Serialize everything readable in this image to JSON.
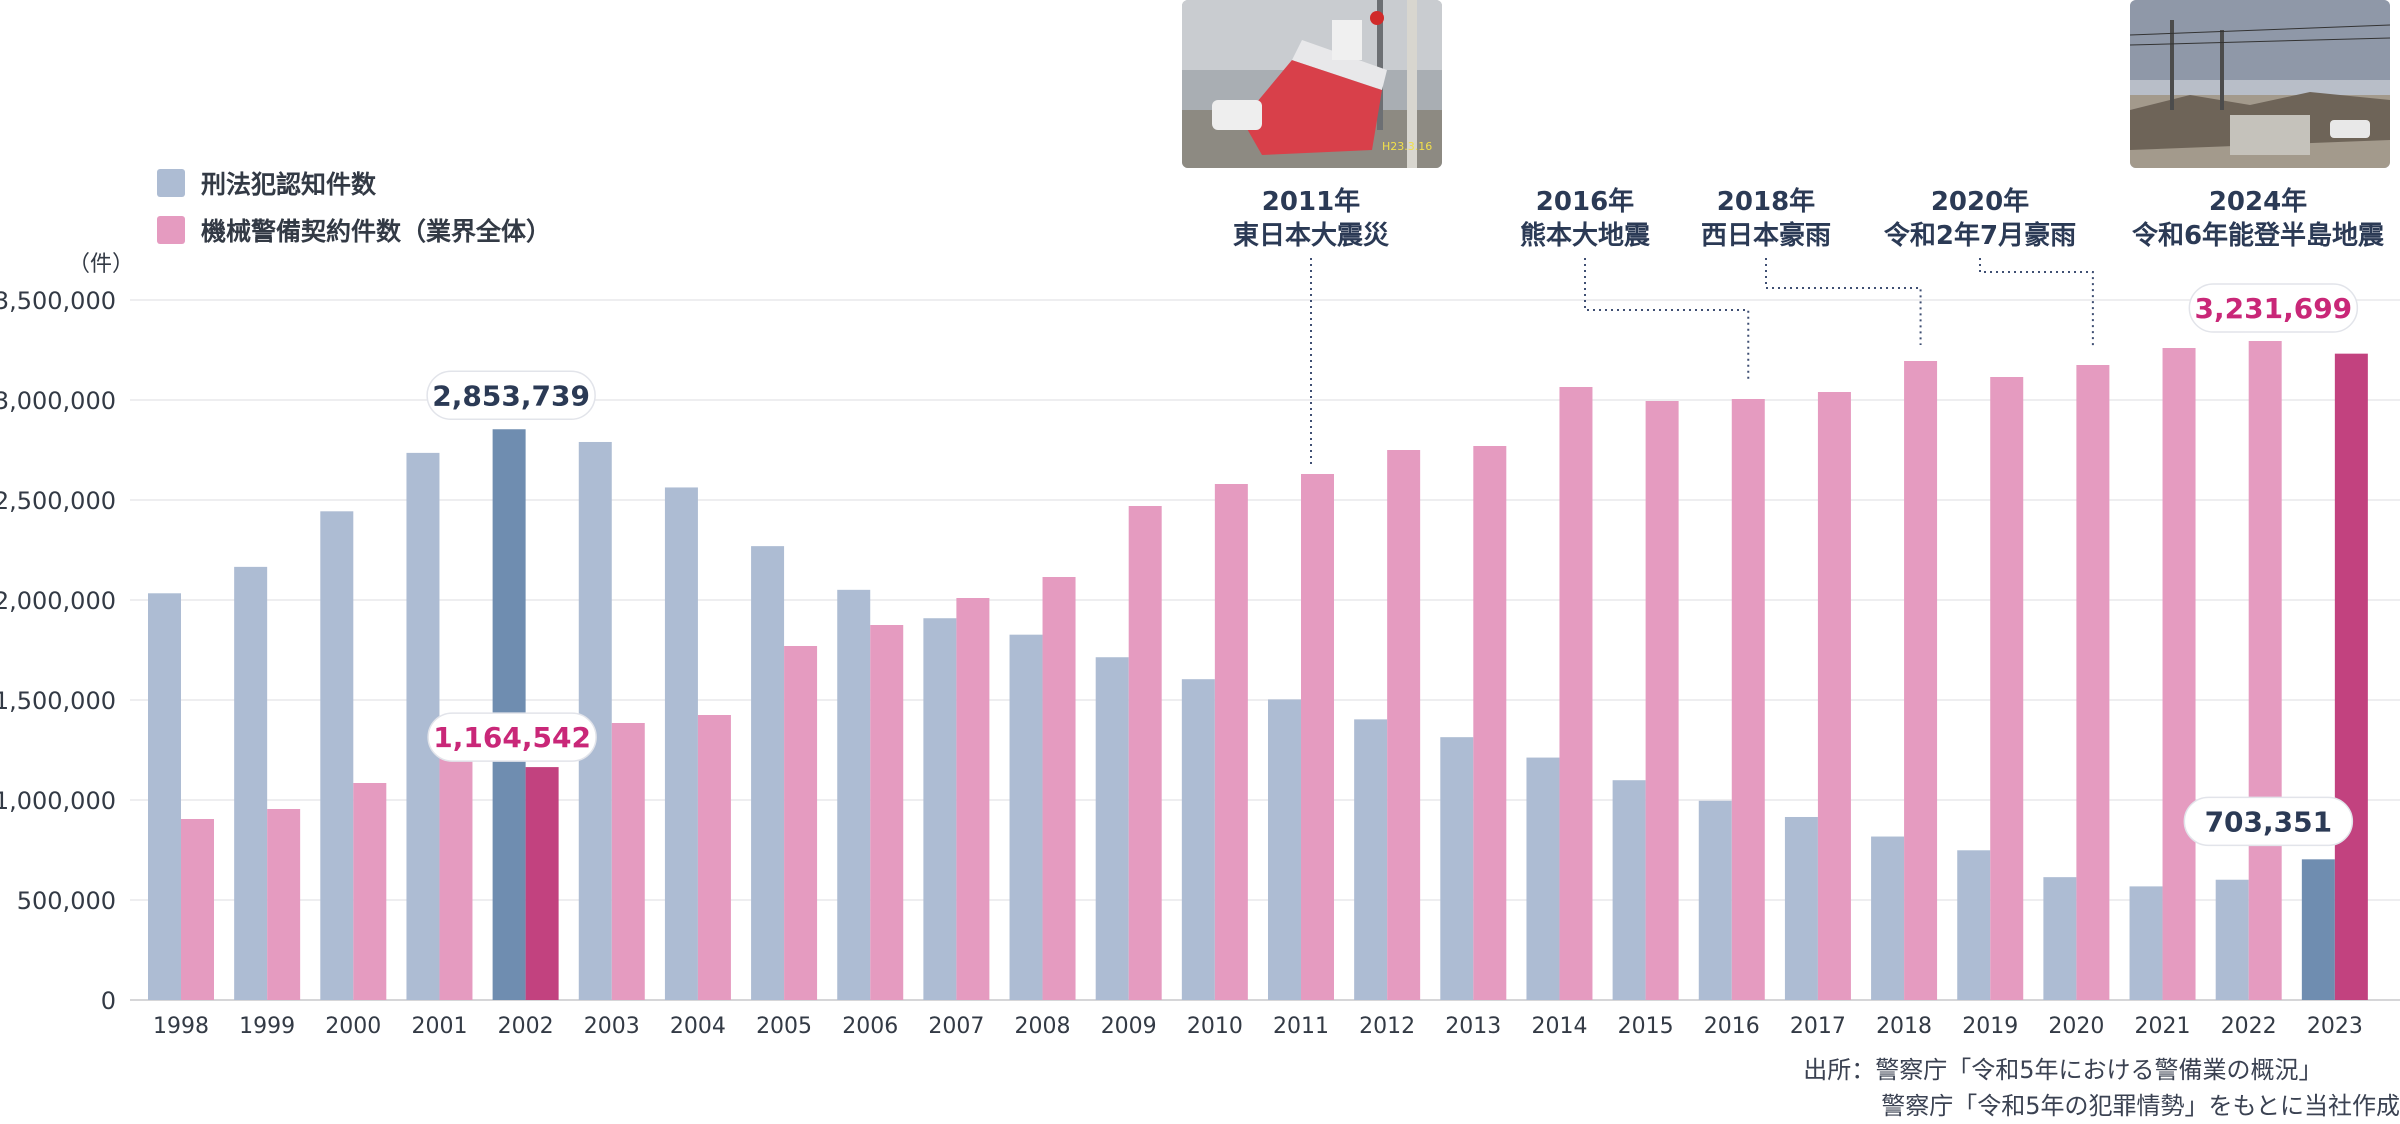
{
  "legend": {
    "series1": "刑法犯認知件数",
    "series2": "機械警備契約件数（業界全体）"
  },
  "unit": "（件）",
  "colors": {
    "crime": "#adbcd3",
    "crime_highlight": "#6f8db0",
    "security": "#e59bc0",
    "security_highlight": "#c2427f",
    "grid": "#e8e8ec",
    "text": "#333a45",
    "callout_crime": "#2b3a55",
    "callout_security": "#c92778",
    "annotation": "#2b3a55",
    "dotted": "#3f4f73"
  },
  "chart_data": {
    "type": "bar",
    "categories": [
      "1998",
      "1999",
      "2000",
      "2001",
      "2002",
      "2003",
      "2004",
      "2005",
      "2006",
      "2007",
      "2008",
      "2009",
      "2010",
      "2011",
      "2012",
      "2013",
      "2014",
      "2015",
      "2016",
      "2017",
      "2018",
      "2019",
      "2020",
      "2021",
      "2022",
      "2023"
    ],
    "series": [
      {
        "name": "刑法犯認知件数",
        "values": [
          2033546,
          2165626,
          2443470,
          2735612,
          2853739,
          2790136,
          2562767,
          2269293,
          2050850,
          1908836,
          1826610,
          1713832,
          1604019,
          1502951,
          1403167,
          1314140,
          1212163,
          1098969,
          996120,
          915042,
          817338,
          748559,
          614231,
          568104,
          601331,
          703351
        ]
      },
      {
        "name": "機械警備契約件数（業界全体）",
        "values": [
          905000,
          955000,
          1085000,
          1235000,
          1164542,
          1385000,
          1425000,
          1770000,
          1875000,
          2010000,
          2115000,
          2470000,
          2580000,
          2630000,
          2750000,
          2770000,
          3065000,
          2995000,
          3005000,
          3040000,
          3195000,
          3115000,
          3175000,
          3260000,
          3295000,
          3231699
        ]
      }
    ],
    "highlight_categories": [
      "2002",
      "2023"
    ],
    "ylim": [
      0,
      3500000
    ],
    "yticks": [
      0,
      500000,
      1000000,
      1500000,
      2000000,
      2500000,
      3000000,
      3500000
    ],
    "ytick_labels": [
      "0",
      "500,000",
      "1,000,000",
      "1,500,000",
      "2,000,000",
      "2,500,000",
      "3,000,000",
      "3,500,000"
    ],
    "ylabel": "（件）",
    "data_labels": [
      {
        "category": "2002",
        "series": 0,
        "text": "2,853,739"
      },
      {
        "category": "2002",
        "series": 1,
        "text": "1,164,542"
      },
      {
        "category": "2023",
        "series": 0,
        "text": "703,351"
      },
      {
        "category": "2023",
        "series": 1,
        "text": "3,231,699"
      }
    ],
    "events": [
      {
        "year": "2011年",
        "name": "東日本大震災",
        "category": "2011"
      },
      {
        "year": "2016年",
        "name": "熊本大地震",
        "category": "2016"
      },
      {
        "year": "2018年",
        "name": "西日本豪雨",
        "category": "2018"
      },
      {
        "year": "2020年",
        "name": "令和2年7月豪雨",
        "category": "2020"
      },
      {
        "year": "2024年",
        "name": "令和6年能登半島地震",
        "category": ""
      }
    ]
  },
  "source": {
    "line1": "出所：警察庁「令和5年における警備業の概況」",
    "line2": "警察庁「令和5年の犯罪情勢」をもとに当社作成"
  },
  "photos": [
    "tsunami-boat-photo",
    "earthquake-damage-photo"
  ]
}
